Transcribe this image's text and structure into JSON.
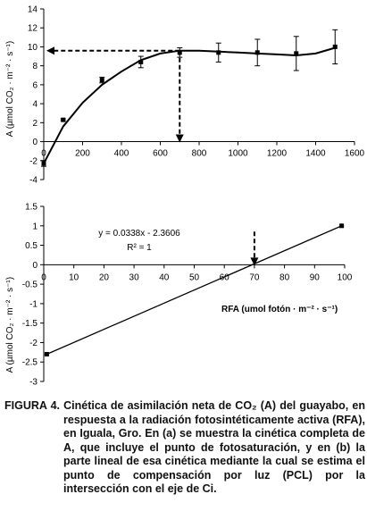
{
  "chart_data": [
    {
      "type": "scatter",
      "panel": "a",
      "ylabel": "A (µmol CO₂ · m⁻² · s⁻¹)",
      "xlim": [
        0,
        1600
      ],
      "ylim": [
        -4,
        14
      ],
      "xticks": [
        0,
        200,
        400,
        600,
        800,
        1000,
        1200,
        1400,
        1600
      ],
      "yticks": [
        -4,
        -2,
        0,
        2,
        4,
        6,
        8,
        10,
        12,
        14
      ],
      "series": [
        {
          "points": [
            {
              "x": 0,
              "y": -2.3,
              "err": 0.3
            },
            {
              "x": 100,
              "y": 2.3,
              "err": 0.1
            },
            {
              "x": 300,
              "y": 6.5,
              "err": 0.3
            },
            {
              "x": 500,
              "y": 8.4,
              "err": 0.6
            },
            {
              "x": 700,
              "y": 9.4,
              "err": 0.5
            },
            {
              "x": 900,
              "y": 9.4,
              "err": 1.0
            },
            {
              "x": 1100,
              "y": 9.4,
              "err": 1.4
            },
            {
              "x": 1300,
              "y": 9.3,
              "err": 1.8
            },
            {
              "x": 1500,
              "y": 10.0,
              "err": 1.8
            }
          ],
          "fit": [
            [
              0,
              -2.3
            ],
            [
              100,
              1.6
            ],
            [
              200,
              4.1
            ],
            [
              300,
              6.0
            ],
            [
              400,
              7.4
            ],
            [
              500,
              8.6
            ],
            [
              600,
              9.3
            ],
            [
              700,
              9.6
            ],
            [
              800,
              9.6
            ],
            [
              900,
              9.5
            ],
            [
              1000,
              9.4
            ],
            [
              1100,
              9.3
            ],
            [
              1200,
              9.2
            ],
            [
              1300,
              9.1
            ],
            [
              1400,
              9.3
            ],
            [
              1500,
              9.9
            ]
          ]
        }
      ],
      "annotations": [
        {
          "type": "horizontal-arrow-to-axis",
          "y": 9.6,
          "x_from": 700
        },
        {
          "type": "vertical-arrow-down",
          "x": 700,
          "y_from": 9.6
        }
      ]
    },
    {
      "type": "line",
      "panel": "b",
      "xlabel": "RFA (umol fotón · m⁻² · s⁻¹)",
      "ylabel": "A (µmol CO₂ · m⁻² · s⁻¹)",
      "xlim": [
        0,
        100
      ],
      "ylim": [
        -3,
        1.5
      ],
      "xticks": [
        0,
        10,
        20,
        30,
        40,
        50,
        60,
        70,
        80,
        90,
        100
      ],
      "yticks": [
        -3,
        -2.5,
        -2,
        -1.5,
        -1,
        -0.5,
        0,
        0.5,
        1,
        1.5
      ],
      "series": [
        {
          "points": [
            {
              "x": 1,
              "y": -2.3
            },
            {
              "x": 99,
              "y": 1.0
            }
          ]
        }
      ],
      "equation": "y = 0.0338x - 2.3606",
      "r2": "R² = 1",
      "annotations": [
        {
          "type": "vertical-arrow-down",
          "x": 70,
          "y_from": 0.85
        }
      ]
    }
  ],
  "caption": {
    "label": "FIGURA 4.",
    "lines": [
      "Cinética de asimilación neta de CO₂ (A) del guayabo,",
      "en respuesta a la radiación fotosintéticamente activa",
      "(RFA), en Iguala, Gro. En (a) se muestra la cinética",
      "completa de A, que incluye el punto de",
      "fotosaturación, y en (b) la parte lineal de esa cinética",
      "mediante la cual se estima el punto de",
      "compensación por luz (PCL) por la intersección con",
      "el eje de Ci."
    ]
  }
}
